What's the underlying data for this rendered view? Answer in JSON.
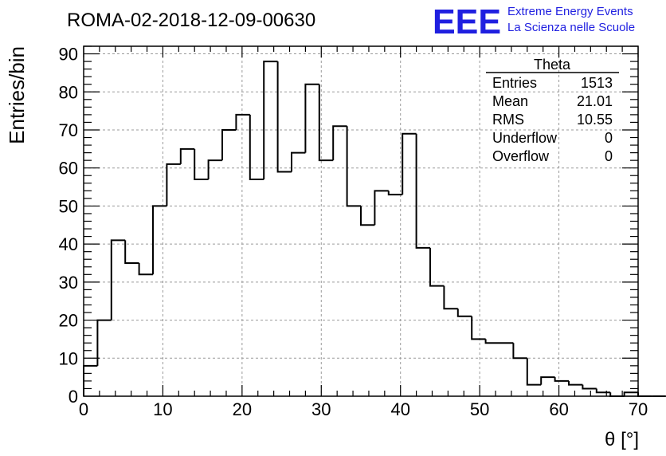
{
  "chart_data": {
    "type": "histogram",
    "title": "ROMA-02-2018-12-09-00630",
    "xlabel": "θ [°]",
    "ylabel": "Entries/bin",
    "xlim": [
      0,
      70
    ],
    "ylim": [
      0,
      92
    ],
    "x_ticks": [
      0,
      10,
      20,
      30,
      40,
      50,
      60,
      70
    ],
    "y_ticks": [
      0,
      10,
      20,
      30,
      40,
      50,
      60,
      70,
      80,
      90
    ],
    "grid": true,
    "bin_width": 1.75,
    "bin_start": 0,
    "values": [
      8,
      20,
      41,
      35,
      32,
      50,
      61,
      65,
      57,
      62,
      70,
      74,
      57,
      88,
      59,
      64,
      82,
      62,
      71,
      50,
      45,
      54,
      53,
      69,
      39,
      29,
      23,
      21,
      15,
      14,
      14,
      10,
      3,
      5,
      4,
      3,
      2,
      1,
      0,
      1,
      0,
      0,
      0,
      0,
      0,
      0,
      0,
      0,
      0,
      0
    ]
  },
  "stats_box": {
    "title": "Theta",
    "rows": [
      {
        "label": "Entries",
        "value": "1513"
      },
      {
        "label": "Mean",
        "value": "21.01"
      },
      {
        "label": "RMS",
        "value": "10.55"
      },
      {
        "label": "Underflow",
        "value": "0"
      },
      {
        "label": "Overflow",
        "value": "0"
      }
    ]
  },
  "logo": {
    "mark": "EEE",
    "line1": "Extreme Energy Events",
    "line2": "La Scienza nelle Scuole",
    "color": "#1f1fe0"
  }
}
